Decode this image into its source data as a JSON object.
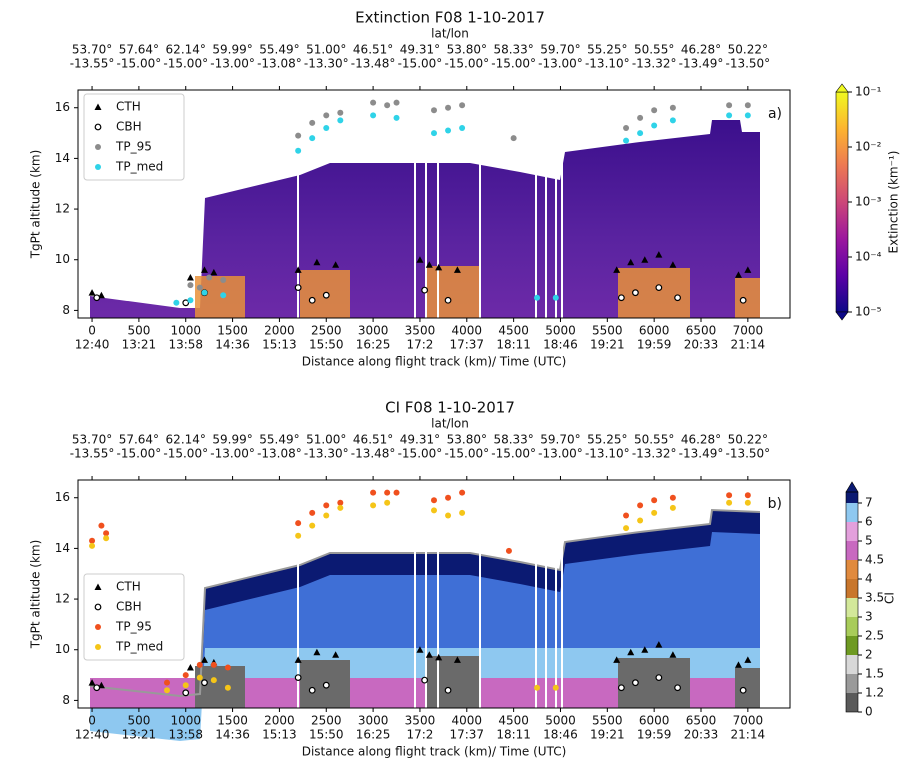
{
  "chart_data": [
    {
      "type": "scatter",
      "title": "Extinction F08  1-10-2017",
      "panel_label": "a)",
      "top_axis_label": "lat/lon",
      "lat": [
        "53.70°",
        "57.64°",
        "62.14°",
        "59.99°",
        "55.49°",
        "51.00°",
        "46.51°",
        "49.31°",
        "53.80°",
        "58.33°",
        "59.70°",
        "55.25°",
        "50.55°",
        "46.28°",
        "50.22°"
      ],
      "lon": [
        "-13.55°",
        "-15.00°",
        "-15.00°",
        "-13.00°",
        "-13.08°",
        "-13.30°",
        "-13.48°",
        "-15.00°",
        "-15.00°",
        "-15.00°",
        "-13.00°",
        "-13.10°",
        "-13.32°",
        "-13.49°",
        "-13.50°"
      ],
      "x_label": "Distance along flight track (km)/ Time (UTC)",
      "y_label": "TgPt altitude (km)",
      "xlim": [
        -150,
        7450
      ],
      "ylim": [
        7.7,
        16.7
      ],
      "xticks": [
        0,
        500,
        1000,
        1500,
        2000,
        2500,
        3000,
        3500,
        4000,
        4500,
        5000,
        5500,
        6000,
        6500,
        7000
      ],
      "time_labels": [
        "12:40",
        "13:21",
        "13:58",
        "14:36",
        "15:13",
        "15:50",
        "16:25",
        "17:2",
        "17:37",
        "18:11",
        "18:46",
        "19:21",
        "19:59",
        "20:33",
        "21:14"
      ],
      "yticks": [
        8,
        10,
        12,
        14,
        16
      ],
      "legend": "upper left",
      "curtain": "extinction",
      "series": [
        {
          "name": "CTH",
          "marker": "triangle",
          "color": "#000000",
          "x": [
            0,
            100,
            1050,
            1200,
            1300,
            2200,
            2400,
            2600,
            3500,
            3600,
            3700,
            3900,
            5600,
            5750,
            5900,
            6050,
            6200,
            6900,
            7000
          ],
          "y": [
            8.7,
            8.6,
            9.3,
            9.6,
            9.5,
            9.6,
            9.9,
            9.8,
            10.0,
            9.8,
            9.7,
            9.6,
            9.6,
            9.9,
            10.0,
            10.2,
            9.8,
            9.4,
            9.6
          ]
        },
        {
          "name": "CBH",
          "marker": "open-circle",
          "color": "#000000",
          "x": [
            50,
            1000,
            1200,
            2200,
            2350,
            2500,
            3550,
            3800,
            5650,
            5800,
            6050,
            6250,
            6950
          ],
          "y": [
            8.5,
            8.3,
            8.7,
            8.9,
            8.4,
            8.6,
            8.8,
            8.4,
            8.5,
            8.7,
            8.9,
            8.5,
            8.4
          ]
        },
        {
          "name": "TP_95",
          "marker": "circle",
          "color": "#8c8c8c",
          "x": [
            1050,
            1150,
            1250,
            1400,
            2200,
            2350,
            2500,
            2650,
            3000,
            3150,
            3250,
            3650,
            3800,
            3950,
            4500,
            5700,
            5850,
            6000,
            6200,
            6800,
            7000
          ],
          "y": [
            9.0,
            8.9,
            9.3,
            9.2,
            14.9,
            15.4,
            15.7,
            15.8,
            16.2,
            16.1,
            16.2,
            15.9,
            16.0,
            16.1,
            14.8,
            15.2,
            15.6,
            15.9,
            16.0,
            16.1,
            16.1
          ]
        },
        {
          "name": "TP_med",
          "marker": "circle",
          "color": "#2fd3e8",
          "x": [
            900,
            1050,
            1200,
            1400,
            2200,
            2350,
            2500,
            2650,
            3000,
            3250,
            3650,
            3800,
            3950,
            4750,
            4950,
            5700,
            5850,
            6000,
            6200,
            6800,
            7000
          ],
          "y": [
            8.3,
            8.4,
            8.7,
            8.6,
            14.3,
            14.8,
            15.2,
            15.5,
            15.7,
            15.6,
            15.0,
            15.1,
            15.2,
            8.5,
            8.5,
            14.7,
            15.0,
            15.3,
            15.5,
            15.7,
            15.7
          ]
        }
      ],
      "colorbar": {
        "label": "Extinction (km⁻¹)",
        "log": true,
        "clim": [
          1e-05,
          0.1
        ],
        "colors": [
          "#0d0887",
          "#5c01a6",
          "#9c179e",
          "#cc4778",
          "#ed7953",
          "#fdb42f",
          "#f0f921"
        ],
        "ticks": [
          {
            "value": 1e-05,
            "label": "10⁻⁵"
          },
          {
            "value": 0.0001,
            "label": "10⁻⁴"
          },
          {
            "value": 0.001,
            "label": "10⁻³"
          },
          {
            "value": 0.01,
            "label": "10⁻²"
          },
          {
            "value": 0.1,
            "label": "10⁻¹"
          }
        ]
      }
    },
    {
      "type": "scatter",
      "title": "CI F08  1-10-2017",
      "panel_label": "b)",
      "top_axis_label": "lat/lon",
      "lat": [
        "53.70°",
        "57.64°",
        "62.14°",
        "59.99°",
        "55.49°",
        "51.00°",
        "46.51°",
        "49.31°",
        "53.80°",
        "58.33°",
        "59.70°",
        "55.25°",
        "50.55°",
        "46.28°",
        "50.22°"
      ],
      "lon": [
        "-13.55°",
        "-15.00°",
        "-15.00°",
        "-13.00°",
        "-13.08°",
        "-13.30°",
        "-13.48°",
        "-15.00°",
        "-15.00°",
        "-15.00°",
        "-13.00°",
        "-13.10°",
        "-13.32°",
        "-13.49°",
        "-13.50°"
      ],
      "x_label": "Distance along flight track (km)/ Time (UTC)",
      "y_label": "TgPt altitude (km)",
      "xlim": [
        -150,
        7450
      ],
      "ylim": [
        7.7,
        16.7
      ],
      "xticks": [
        0,
        500,
        1000,
        1500,
        2000,
        2500,
        3000,
        3500,
        4000,
        4500,
        5000,
        5500,
        6000,
        6500,
        7000
      ],
      "time_labels": [
        "12:40",
        "13:21",
        "13:58",
        "14:36",
        "15:13",
        "15:50",
        "16:25",
        "17:2",
        "17:37",
        "18:11",
        "18:46",
        "19:21",
        "19:59",
        "20:33",
        "21:14"
      ],
      "yticks": [
        8,
        10,
        12,
        14,
        16
      ],
      "legend": "center left",
      "curtain": "ci",
      "series": [
        {
          "name": "CTH",
          "marker": "triangle",
          "color": "#000000",
          "x": [
            0,
            100,
            1050,
            1200,
            1300,
            2200,
            2400,
            2600,
            3500,
            3600,
            3700,
            3900,
            5600,
            5750,
            5900,
            6050,
            6200,
            6900,
            7000
          ],
          "y": [
            8.7,
            8.6,
            9.3,
            9.6,
            9.5,
            9.6,
            9.9,
            9.8,
            10.0,
            9.8,
            9.7,
            9.6,
            9.6,
            9.9,
            10.0,
            10.2,
            9.8,
            9.4,
            9.6
          ]
        },
        {
          "name": "CBH",
          "marker": "open-circle",
          "color": "#000000",
          "x": [
            50,
            1000,
            1200,
            2200,
            2350,
            2500,
            3550,
            3800,
            5650,
            5800,
            6050,
            6250,
            6950
          ],
          "y": [
            8.5,
            8.3,
            8.7,
            8.9,
            8.4,
            8.6,
            8.8,
            8.4,
            8.5,
            8.7,
            8.9,
            8.5,
            8.4
          ]
        },
        {
          "name": "TP_95",
          "marker": "circle",
          "color": "#f0501e",
          "x": [
            0,
            100,
            150,
            800,
            1000,
            1150,
            1300,
            1450,
            2200,
            2350,
            2500,
            2650,
            3000,
            3150,
            3250,
            3650,
            3800,
            3950,
            4450,
            5700,
            5850,
            6000,
            6200,
            6800,
            7000
          ],
          "y": [
            14.3,
            14.9,
            14.6,
            8.7,
            9.0,
            9.4,
            9.4,
            9.3,
            15.0,
            15.4,
            15.7,
            15.8,
            16.2,
            16.2,
            16.2,
            15.9,
            16.0,
            16.2,
            13.9,
            15.3,
            15.7,
            15.9,
            16.0,
            16.1,
            16.1
          ]
        },
        {
          "name": "TP_med",
          "marker": "circle",
          "color": "#f5c518",
          "x": [
            0,
            150,
            800,
            1000,
            1150,
            1300,
            1450,
            2200,
            2350,
            2500,
            2650,
            3000,
            3150,
            3650,
            3800,
            3950,
            4750,
            4950,
            5700,
            5850,
            6000,
            6200,
            6800,
            7000
          ],
          "y": [
            14.1,
            14.4,
            8.4,
            8.6,
            8.9,
            8.8,
            8.5,
            14.5,
            14.9,
            15.3,
            15.6,
            15.7,
            15.8,
            15.5,
            15.3,
            15.4,
            8.5,
            8.5,
            14.8,
            15.1,
            15.4,
            15.6,
            15.8,
            15.8
          ]
        }
      ],
      "colorbar": {
        "label": "CI",
        "log": false,
        "levels": [
          0,
          1.2,
          1.5,
          2,
          2.5,
          3,
          3.5,
          4,
          4.5,
          5,
          6,
          7
        ],
        "colors": [
          "#5a5a5a",
          "#9a9a9a",
          "#d8d8d8",
          "#6e9a22",
          "#a8cc5a",
          "#d3e89a",
          "#c8762c",
          "#e08a3e",
          "#c869c0",
          "#e3a0dc",
          "#8ec8f0",
          "#3f6fd6"
        ],
        "over_color": "#0b1a72"
      }
    }
  ]
}
